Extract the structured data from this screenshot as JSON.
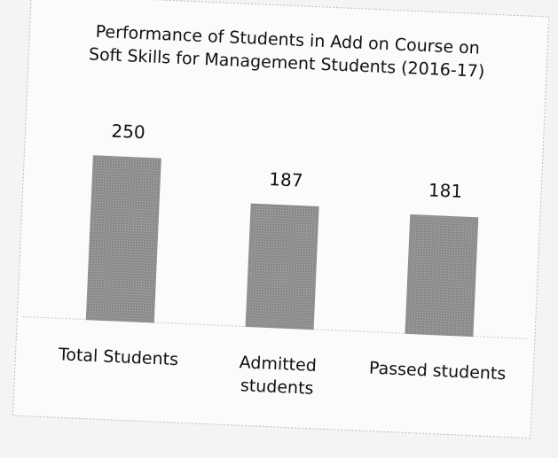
{
  "chart_data": {
    "type": "bar",
    "title": "Performance of Students in Add on Course on Soft Skills for Management Students (2016-17)",
    "categories": [
      "Total Students",
      "Admitted students",
      "Passed students"
    ],
    "values": [
      250,
      187,
      181
    ],
    "color": "#8c8c8c"
  }
}
